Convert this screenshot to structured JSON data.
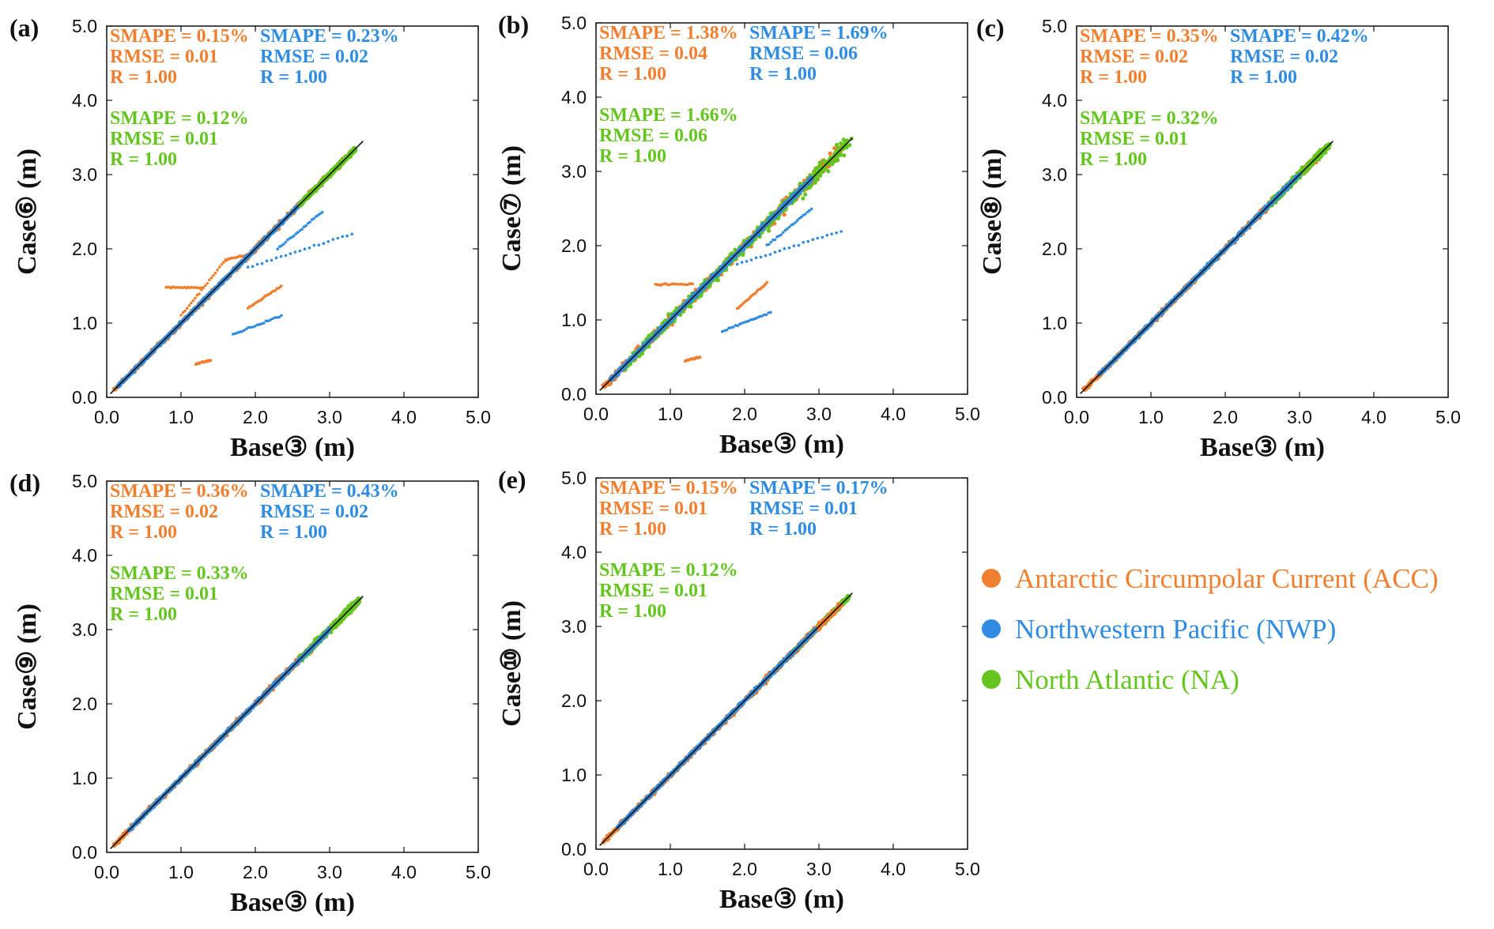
{
  "colors": {
    "ACC": "#f07f2f",
    "NWP": "#2f8ce0",
    "NA": "#64c51e",
    "line": "#111111"
  },
  "legend": [
    {
      "key": "ACC",
      "label": "Antarctic Circumpolar Current (ACC)"
    },
    {
      "key": "NWP",
      "label": "Northwestern Pacific (NWP)"
    },
    {
      "key": "NA",
      "label": "North Atlantic (NA)"
    }
  ],
  "chart_data": [
    {
      "type": "scatter",
      "panel_label": "(a)",
      "xlabel": "Base③ (m)",
      "ylabel": "Case⑥ (m)",
      "xlim": [
        0,
        5
      ],
      "ylim": [
        0,
        5
      ],
      "xticks": [
        "0.0",
        "1.0",
        "2.0",
        "3.0",
        "4.0",
        "5.0"
      ],
      "yticks": [
        "0.0",
        "1.0",
        "2.0",
        "3.0",
        "4.0",
        "5.0"
      ],
      "stats": [
        {
          "series": "ACC",
          "lines": [
            "SMAPE = 0.15%",
            "RMSE = 0.01",
            "R = 1.00"
          ]
        },
        {
          "series": "NWP",
          "lines": [
            "SMAPE = 0.23%",
            "RMSE = 0.02",
            "R = 1.00"
          ]
        },
        {
          "series": "NA",
          "lines": [
            "SMAPE = 0.12%",
            "RMSE = 0.01",
            "R = 1.00"
          ]
        }
      ],
      "series": [
        {
          "name": "ACC",
          "range": [
            0.1,
            3.3
          ],
          "spread": 0.05,
          "outliers": [
            [
              [
                0.8,
                1.48
              ],
              [
                1.3,
                1.48
              ]
            ],
            [
              [
                1.2,
                0.45
              ],
              [
                1.4,
                0.5
              ]
            ],
            [
              [
                1.9,
                1.2
              ],
              [
                2.35,
                1.5
              ]
            ],
            [
              [
                1.0,
                1.1
              ],
              [
                1.6,
                1.85
              ],
              [
                2.0,
                1.95
              ]
            ]
          ]
        },
        {
          "name": "NWP",
          "range": [
            0.15,
            2.9
          ],
          "spread": 0.03,
          "outliers": [
            [
              [
                1.7,
                0.85
              ],
              [
                2.35,
                1.1
              ]
            ],
            [
              [
                1.9,
                1.75
              ],
              [
                3.3,
                2.2
              ]
            ],
            [
              [
                2.3,
                2.0
              ],
              [
                2.9,
                2.5
              ]
            ]
          ]
        },
        {
          "name": "NA",
          "range": [
            2.6,
            3.35
          ],
          "spread": 0.04,
          "outliers": []
        }
      ]
    },
    {
      "type": "scatter",
      "panel_label": "(b)",
      "xlabel": "Base③ (m)",
      "ylabel": "Case⑦ (m)",
      "xlim": [
        0,
        5
      ],
      "ylim": [
        0,
        5
      ],
      "xticks": [
        "0.0",
        "1.0",
        "2.0",
        "3.0",
        "4.0",
        "5.0"
      ],
      "yticks": [
        "0.0",
        "1.0",
        "2.0",
        "3.0",
        "4.0",
        "5.0"
      ],
      "stats": [
        {
          "series": "ACC",
          "lines": [
            "SMAPE = 1.38%",
            "RMSE = 0.04",
            "R = 1.00"
          ]
        },
        {
          "series": "NWP",
          "lines": [
            "SMAPE = 1.69%",
            "RMSE = 0.06",
            "R = 1.00"
          ]
        },
        {
          "series": "NA",
          "lines": [
            "SMAPE = 1.66%",
            "RMSE = 0.06",
            "R = 1.00"
          ]
        }
      ],
      "series": [
        {
          "name": "ACC",
          "range": [
            0.1,
            3.3
          ],
          "spread": 0.12,
          "outliers": [
            [
              [
                0.8,
                1.48
              ],
              [
                1.3,
                1.48
              ]
            ],
            [
              [
                1.2,
                0.45
              ],
              [
                1.4,
                0.5
              ]
            ],
            [
              [
                1.9,
                1.15
              ],
              [
                2.3,
                1.5
              ]
            ]
          ]
        },
        {
          "name": "NA",
          "range": [
            0.4,
            3.4
          ],
          "spread": 0.14,
          "outliers": []
        },
        {
          "name": "NWP",
          "range": [
            0.2,
            2.9
          ],
          "spread": 0.05,
          "outliers": [
            [
              [
                1.7,
                0.85
              ],
              [
                2.35,
                1.1
              ]
            ],
            [
              [
                1.9,
                1.75
              ],
              [
                3.3,
                2.2
              ]
            ],
            [
              [
                2.3,
                2.0
              ],
              [
                2.9,
                2.5
              ]
            ]
          ]
        }
      ]
    },
    {
      "type": "scatter",
      "panel_label": "(c)",
      "xlabel": "Base③ (m)",
      "ylabel": "Case⑧ (m)",
      "xlim": [
        0,
        5
      ],
      "ylim": [
        0,
        5
      ],
      "xticks": [
        "0.0",
        "1.0",
        "2.0",
        "3.0",
        "4.0",
        "5.0"
      ],
      "yticks": [
        "0.0",
        "1.0",
        "2.0",
        "3.0",
        "4.0",
        "5.0"
      ],
      "stats": [
        {
          "series": "ACC",
          "lines": [
            "SMAPE = 0.35%",
            "RMSE = 0.02",
            "R = 1.00"
          ]
        },
        {
          "series": "NWP",
          "lines": [
            "SMAPE = 0.42%",
            "RMSE = 0.02",
            "R = 1.00"
          ]
        },
        {
          "series": "NA",
          "lines": [
            "SMAPE = 0.32%",
            "RMSE = 0.01",
            "R = 1.00"
          ]
        }
      ],
      "series": [
        {
          "name": "ACC",
          "range": [
            0.1,
            3.3
          ],
          "spread": 0.06,
          "outliers": []
        },
        {
          "name": "NA",
          "range": [
            2.6,
            3.4
          ],
          "spread": 0.06,
          "outliers": []
        },
        {
          "name": "NWP",
          "range": [
            0.3,
            3.0
          ],
          "spread": 0.035,
          "outliers": []
        }
      ]
    },
    {
      "type": "scatter",
      "panel_label": "(d)",
      "xlabel": "Base③ (m)",
      "ylabel": "Case⑨ (m)",
      "xlim": [
        0,
        5
      ],
      "ylim": [
        0,
        5
      ],
      "xticks": [
        "0.0",
        "1.0",
        "2.0",
        "3.0",
        "4.0",
        "5.0"
      ],
      "yticks": [
        "0.0",
        "1.0",
        "2.0",
        "3.0",
        "4.0",
        "5.0"
      ],
      "stats": [
        {
          "series": "ACC",
          "lines": [
            "SMAPE = 0.36%",
            "RMSE = 0.02",
            "R = 1.00"
          ]
        },
        {
          "series": "NWP",
          "lines": [
            "SMAPE = 0.43%",
            "RMSE = 0.02",
            "R = 1.00"
          ]
        },
        {
          "series": "NA",
          "lines": [
            "SMAPE = 0.33%",
            "RMSE = 0.01",
            "R = 1.00"
          ]
        }
      ],
      "series": [
        {
          "name": "ACC",
          "range": [
            0.1,
            3.3
          ],
          "spread": 0.06,
          "outliers": []
        },
        {
          "name": "NA",
          "range": [
            2.6,
            3.4
          ],
          "spread": 0.06,
          "outliers": []
        },
        {
          "name": "NWP",
          "range": [
            0.3,
            3.0
          ],
          "spread": 0.035,
          "outliers": []
        }
      ]
    },
    {
      "type": "scatter",
      "panel_label": "(e)",
      "xlabel": "Base③ (m)",
      "ylabel": "Case⑩ (m)",
      "xlim": [
        0,
        5
      ],
      "ylim": [
        0,
        5
      ],
      "xticks": [
        "0.0",
        "1.0",
        "2.0",
        "3.0",
        "4.0",
        "5.0"
      ],
      "yticks": [
        "0.0",
        "1.0",
        "2.0",
        "3.0",
        "4.0",
        "5.0"
      ],
      "stats": [
        {
          "series": "ACC",
          "lines": [
            "SMAPE = 0.15%",
            "RMSE = 0.01",
            "R = 1.00"
          ]
        },
        {
          "series": "NWP",
          "lines": [
            "SMAPE = 0.17%",
            "RMSE = 0.01",
            "R = 1.00"
          ]
        },
        {
          "series": "NA",
          "lines": [
            "SMAPE = 0.12%",
            "RMSE = 0.01",
            "R = 1.00"
          ]
        }
      ],
      "series": [
        {
          "name": "NA",
          "range": [
            2.6,
            3.4
          ],
          "spread": 0.04,
          "outliers": []
        },
        {
          "name": "ACC",
          "range": [
            0.1,
            3.3
          ],
          "spread": 0.06,
          "outliers": []
        },
        {
          "name": "NWP",
          "range": [
            0.3,
            2.95
          ],
          "spread": 0.03,
          "outliers": []
        }
      ]
    }
  ]
}
